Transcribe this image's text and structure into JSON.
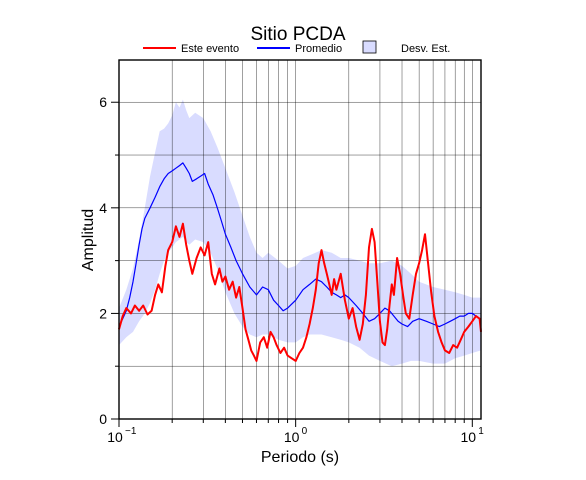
{
  "chart_data": {
    "type": "line",
    "title": "Sitio PCDA",
    "xlabel": "Periodo (s)",
    "ylabel": "Amplitud",
    "xscale": "log",
    "xlim": [
      0.1,
      11.2
    ],
    "ylim": [
      0,
      6.8
    ],
    "grid": true,
    "legend_position": "top",
    "x_tick_labels": [
      {
        "value": 0.1,
        "base": "10",
        "exp": "−1"
      },
      {
        "value": 1,
        "base": "10",
        "exp": "0"
      },
      {
        "value": 10,
        "base": "10",
        "exp": "1"
      }
    ],
    "y_ticks": [
      0,
      2,
      4,
      6
    ],
    "legend": [
      {
        "label": "Este evento",
        "kind": "line",
        "color": "#ff0000"
      },
      {
        "label": "Promedio",
        "kind": "line",
        "color": "#0000ff"
      },
      {
        "label": "Desv. Est.",
        "kind": "box",
        "color": "#d9dcff"
      }
    ],
    "series": [
      {
        "name": "Este evento",
        "color": "#ff0000",
        "points": [
          [
            0.1,
            1.7
          ],
          [
            0.105,
            1.95
          ],
          [
            0.11,
            2.1
          ],
          [
            0.117,
            2.0
          ],
          [
            0.123,
            2.15
          ],
          [
            0.13,
            2.05
          ],
          [
            0.137,
            2.15
          ],
          [
            0.145,
            1.98
          ],
          [
            0.153,
            2.05
          ],
          [
            0.16,
            2.35
          ],
          [
            0.167,
            2.55
          ],
          [
            0.175,
            2.4
          ],
          [
            0.183,
            2.9
          ],
          [
            0.19,
            3.2
          ],
          [
            0.2,
            3.35
          ],
          [
            0.21,
            3.65
          ],
          [
            0.22,
            3.45
          ],
          [
            0.23,
            3.7
          ],
          [
            0.24,
            3.3
          ],
          [
            0.25,
            3.0
          ],
          [
            0.26,
            2.75
          ],
          [
            0.275,
            3.05
          ],
          [
            0.29,
            3.25
          ],
          [
            0.305,
            3.1
          ],
          [
            0.32,
            3.35
          ],
          [
            0.335,
            2.75
          ],
          [
            0.35,
            2.55
          ],
          [
            0.37,
            2.85
          ],
          [
            0.385,
            2.6
          ],
          [
            0.4,
            2.7
          ],
          [
            0.42,
            2.45
          ],
          [
            0.44,
            2.6
          ],
          [
            0.46,
            2.3
          ],
          [
            0.48,
            2.5
          ],
          [
            0.5,
            2.1
          ],
          [
            0.52,
            1.7
          ],
          [
            0.54,
            1.5
          ],
          [
            0.56,
            1.3
          ],
          [
            0.58,
            1.2
          ],
          [
            0.6,
            1.1
          ],
          [
            0.63,
            1.45
          ],
          [
            0.66,
            1.55
          ],
          [
            0.69,
            1.35
          ],
          [
            0.72,
            1.65
          ],
          [
            0.75,
            1.55
          ],
          [
            0.78,
            1.4
          ],
          [
            0.82,
            1.25
          ],
          [
            0.86,
            1.35
          ],
          [
            0.9,
            1.2
          ],
          [
            0.95,
            1.15
          ],
          [
            1.0,
            1.1
          ],
          [
            1.05,
            1.25
          ],
          [
            1.1,
            1.35
          ],
          [
            1.15,
            1.55
          ],
          [
            1.2,
            1.8
          ],
          [
            1.25,
            2.1
          ],
          [
            1.3,
            2.45
          ],
          [
            1.35,
            2.95
          ],
          [
            1.4,
            3.2
          ],
          [
            1.45,
            2.95
          ],
          [
            1.5,
            2.75
          ],
          [
            1.55,
            2.55
          ],
          [
            1.6,
            2.35
          ],
          [
            1.65,
            2.65
          ],
          [
            1.7,
            2.45
          ],
          [
            1.8,
            2.75
          ],
          [
            1.9,
            2.25
          ],
          [
            2.0,
            1.9
          ],
          [
            2.1,
            2.1
          ],
          [
            2.2,
            1.75
          ],
          [
            2.3,
            1.5
          ],
          [
            2.4,
            1.8
          ],
          [
            2.5,
            2.35
          ],
          [
            2.6,
            3.25
          ],
          [
            2.7,
            3.6
          ],
          [
            2.8,
            3.35
          ],
          [
            2.9,
            2.6
          ],
          [
            3.0,
            1.85
          ],
          [
            3.1,
            1.45
          ],
          [
            3.2,
            1.4
          ],
          [
            3.3,
            1.7
          ],
          [
            3.4,
            2.15
          ],
          [
            3.5,
            2.55
          ],
          [
            3.6,
            2.35
          ],
          [
            3.75,
            3.05
          ],
          [
            3.9,
            2.75
          ],
          [
            4.05,
            2.35
          ],
          [
            4.2,
            2.0
          ],
          [
            4.4,
            1.9
          ],
          [
            4.6,
            2.35
          ],
          [
            4.8,
            2.75
          ],
          [
            5.0,
            2.95
          ],
          [
            5.2,
            3.2
          ],
          [
            5.4,
            3.5
          ],
          [
            5.6,
            3.0
          ],
          [
            5.85,
            2.4
          ],
          [
            6.1,
            1.95
          ],
          [
            6.4,
            1.65
          ],
          [
            6.7,
            1.45
          ],
          [
            7.0,
            1.3
          ],
          [
            7.4,
            1.25
          ],
          [
            7.8,
            1.4
          ],
          [
            8.2,
            1.35
          ],
          [
            8.6,
            1.5
          ],
          [
            9.0,
            1.65
          ],
          [
            9.5,
            1.75
          ],
          [
            10.0,
            1.85
          ],
          [
            10.5,
            1.95
          ],
          [
            11.0,
            1.9
          ],
          [
            11.2,
            1.65
          ]
        ]
      },
      {
        "name": "Promedio",
        "color": "#0000ff",
        "points": [
          [
            0.1,
            1.75
          ],
          [
            0.105,
            1.9
          ],
          [
            0.11,
            2.05
          ],
          [
            0.115,
            2.3
          ],
          [
            0.12,
            2.6
          ],
          [
            0.125,
            2.95
          ],
          [
            0.13,
            3.3
          ],
          [
            0.135,
            3.6
          ],
          [
            0.14,
            3.8
          ],
          [
            0.15,
            4.0
          ],
          [
            0.16,
            4.2
          ],
          [
            0.17,
            4.4
          ],
          [
            0.18,
            4.55
          ],
          [
            0.19,
            4.65
          ],
          [
            0.2,
            4.7
          ],
          [
            0.21,
            4.75
          ],
          [
            0.22,
            4.8
          ],
          [
            0.23,
            4.85
          ],
          [
            0.24,
            4.75
          ],
          [
            0.25,
            4.65
          ],
          [
            0.26,
            4.5
          ],
          [
            0.275,
            4.55
          ],
          [
            0.29,
            4.6
          ],
          [
            0.305,
            4.65
          ],
          [
            0.32,
            4.45
          ],
          [
            0.34,
            4.25
          ],
          [
            0.36,
            4.0
          ],
          [
            0.38,
            3.75
          ],
          [
            0.4,
            3.5
          ],
          [
            0.43,
            3.25
          ],
          [
            0.46,
            3.0
          ],
          [
            0.5,
            2.75
          ],
          [
            0.55,
            2.5
          ],
          [
            0.6,
            2.35
          ],
          [
            0.65,
            2.5
          ],
          [
            0.7,
            2.45
          ],
          [
            0.75,
            2.25
          ],
          [
            0.8,
            2.15
          ],
          [
            0.85,
            2.05
          ],
          [
            0.9,
            2.1
          ],
          [
            1.0,
            2.25
          ],
          [
            1.1,
            2.45
          ],
          [
            1.2,
            2.55
          ],
          [
            1.3,
            2.65
          ],
          [
            1.4,
            2.6
          ],
          [
            1.5,
            2.5
          ],
          [
            1.6,
            2.4
          ],
          [
            1.7,
            2.35
          ],
          [
            1.8,
            2.3
          ],
          [
            1.9,
            2.35
          ],
          [
            2.0,
            2.3
          ],
          [
            2.2,
            2.15
          ],
          [
            2.4,
            2.0
          ],
          [
            2.6,
            1.85
          ],
          [
            2.8,
            1.9
          ],
          [
            3.0,
            2.0
          ],
          [
            3.2,
            2.1
          ],
          [
            3.4,
            2.05
          ],
          [
            3.6,
            1.95
          ],
          [
            3.8,
            1.85
          ],
          [
            4.0,
            1.8
          ],
          [
            4.3,
            1.75
          ],
          [
            4.6,
            1.85
          ],
          [
            5.0,
            1.9
          ],
          [
            5.5,
            1.85
          ],
          [
            6.0,
            1.8
          ],
          [
            6.5,
            1.75
          ],
          [
            7.0,
            1.8
          ],
          [
            7.5,
            1.85
          ],
          [
            8.0,
            1.9
          ],
          [
            8.5,
            1.95
          ],
          [
            9.0,
            1.95
          ],
          [
            9.5,
            2.0
          ],
          [
            10.0,
            2.0
          ],
          [
            10.5,
            1.95
          ],
          [
            11.0,
            1.9
          ],
          [
            11.2,
            1.85
          ]
        ]
      }
    ],
    "std_band": {
      "name": "Desv. Est.",
      "color": "#d9dcff",
      "x": [
        0.1,
        0.11,
        0.12,
        0.13,
        0.14,
        0.15,
        0.16,
        0.17,
        0.18,
        0.19,
        0.2,
        0.21,
        0.22,
        0.23,
        0.24,
        0.25,
        0.27,
        0.3,
        0.33,
        0.36,
        0.4,
        0.45,
        0.5,
        0.55,
        0.6,
        0.65,
        0.7,
        0.8,
        0.9,
        1.0,
        1.1,
        1.2,
        1.4,
        1.6,
        1.8,
        2.0,
        2.3,
        2.6,
        3.0,
        3.5,
        4.0,
        4.5,
        5.0,
        6.0,
        7.0,
        8.0,
        9.0,
        10.0,
        11.2
      ],
      "upper": [
        2.1,
        2.45,
        2.85,
        3.4,
        4.0,
        4.6,
        5.05,
        5.45,
        5.5,
        5.6,
        5.75,
        6.0,
        5.9,
        6.05,
        5.85,
        5.7,
        5.8,
        5.7,
        5.45,
        5.15,
        4.75,
        4.3,
        3.85,
        3.45,
        3.15,
        3.05,
        3.15,
        3.0,
        2.85,
        2.9,
        3.05,
        3.1,
        3.2,
        3.15,
        3.05,
        3.05,
        3.0,
        2.95,
        2.95,
        3.0,
        2.9,
        2.75,
        2.6,
        2.5,
        2.45,
        2.4,
        2.35,
        2.3,
        2.3
      ],
      "lower": [
        1.4,
        1.55,
        1.65,
        1.85,
        2.0,
        2.2,
        2.45,
        2.75,
        3.0,
        3.15,
        3.25,
        3.35,
        3.4,
        3.45,
        3.35,
        3.3,
        3.4,
        3.35,
        3.15,
        2.85,
        2.4,
        2.0,
        1.75,
        1.6,
        1.55,
        1.6,
        1.6,
        1.5,
        1.45,
        1.45,
        1.55,
        1.6,
        1.6,
        1.55,
        1.5,
        1.45,
        1.35,
        1.2,
        1.1,
        1.0,
        1.05,
        1.1,
        1.1,
        1.05,
        1.05,
        1.15,
        1.2,
        1.25,
        1.3
      ]
    }
  }
}
